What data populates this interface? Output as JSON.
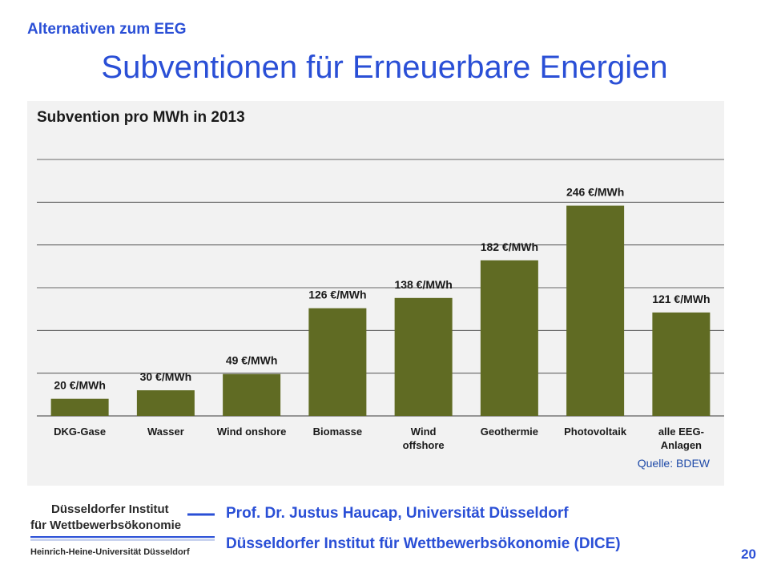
{
  "header": {
    "top_label": "Alternativen zum EEG",
    "title": "Subventionen für Erneuerbare Energien"
  },
  "chart_data": {
    "type": "bar",
    "title": "Subvention pro MWh in 2013",
    "categories": [
      "DKG-Gase",
      "Wasser",
      "Wind onshore",
      "Biomasse",
      "Wind offshore",
      "Geothermie",
      "Photovoltaik",
      "alle EEG-Anlagen"
    ],
    "values": [
      20,
      30,
      49,
      126,
      138,
      182,
      246,
      121
    ],
    "data_labels": [
      "20 €/MWh",
      "30 €/MWh",
      "49 €/MWh",
      "126 €/MWh",
      "138 €/MWh",
      "182 €/MWh",
      "246 €/MWh",
      "121 €/MWh"
    ],
    "unit": "€/MWh",
    "ylim": [
      0,
      300
    ],
    "grid": true,
    "bar_color": "#606b23",
    "source": "Quelle: BDEW"
  },
  "logo": {
    "line1": "Düsseldorfer Institut",
    "line2": "für Wettbewerbsökonomie",
    "line3": "Heinrich-Heine-Universität Düsseldorf"
  },
  "footer": {
    "line1": "Prof. Dr. Justus Haucap, Universität Düsseldorf",
    "line2": "Düsseldorfer Institut für Wettbewerbsökonomie (DICE)",
    "page_number": "20"
  },
  "colors": {
    "accent": "#2a4fd6",
    "panel_bg": "#f2f2f2"
  }
}
